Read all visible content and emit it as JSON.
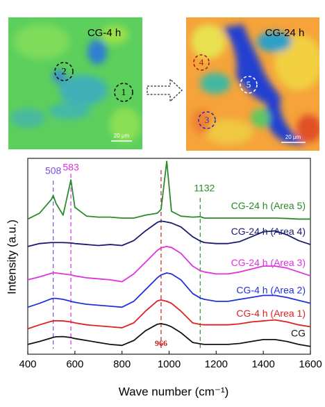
{
  "maps": {
    "left": {
      "title": "CG-4 h",
      "areas": [
        "2",
        "1"
      ],
      "scale": "20 μm"
    },
    "right": {
      "title": "CG-24 h",
      "areas": [
        "4",
        "5",
        "3"
      ],
      "scale": "20 μm"
    }
  },
  "chart_data": {
    "type": "line",
    "xlabel": "Wave number (cm⁻¹)",
    "ylabel": "Intensity (a.u.)",
    "x": [
      400,
      450,
      500,
      508,
      520,
      550,
      583,
      600,
      650,
      700,
      750,
      800,
      850,
      900,
      950,
      966,
      990,
      1010,
      1050,
      1100,
      1132,
      1150,
      1200,
      1250,
      1300,
      1350,
      1400,
      1450,
      1500,
      1550,
      1600
    ],
    "xlim": [
      400,
      1600
    ],
    "xticks": [
      400,
      600,
      800,
      1000,
      1200,
      1400,
      1600
    ],
    "ylim": [
      0,
      100
    ],
    "series": [
      {
        "name": "CG",
        "color": "#111111",
        "values": [
          5,
          6.5,
          8.3,
          8.6,
          8.9,
          9,
          8.5,
          8,
          7,
          6,
          5,
          4.5,
          7,
          12,
          15.3,
          15.6,
          15,
          14,
          11,
          6,
          5.3,
          5,
          5,
          5,
          5.5,
          6.5,
          7.5,
          7.5,
          6.5,
          5,
          4
        ]
      },
      {
        "name": "CG-4 h (Area 1)",
        "color": "#e02020",
        "values": [
          13,
          15,
          16.8,
          17,
          17.1,
          17,
          16.5,
          16,
          15,
          14.5,
          14,
          13.5,
          16,
          22,
          27.2,
          27.7,
          27,
          26,
          22,
          16,
          15.2,
          15,
          15,
          15,
          15.5,
          16.5,
          17,
          17.5,
          16.5,
          15,
          14
        ]
      },
      {
        "name": "CG-4 h (Area 2)",
        "color": "#2030e0",
        "values": [
          24,
          26,
          28.3,
          28.5,
          28.5,
          28,
          27,
          26.5,
          25.5,
          25,
          24.5,
          24,
          27,
          33,
          39,
          40.5,
          41.5,
          41,
          38,
          31,
          28.7,
          28,
          27,
          27,
          28,
          29,
          30,
          30,
          29,
          27.5,
          26
        ]
      },
      {
        "name": "CG-24 h (Area 3)",
        "color": "#e030e0",
        "values": [
          38,
          39.5,
          41.3,
          41.5,
          41.5,
          41,
          40.5,
          40,
          39,
          38.5,
          38,
          37,
          41,
          47,
          53,
          54.3,
          55,
          54.5,
          51.5,
          45,
          42.7,
          42,
          41,
          41,
          42,
          43.5,
          45,
          45,
          44,
          42,
          40
        ]
      },
      {
        "name": "CG-24 h (Area 4)",
        "color": "#1a1a6e",
        "values": [
          55,
          56.5,
          57,
          57,
          57,
          57,
          56.8,
          56.5,
          56,
          55.5,
          56,
          55.5,
          58,
          63,
          67.3,
          68,
          67.5,
          67,
          65,
          60,
          57.8,
          57,
          56.5,
          56.5,
          57.5,
          60,
          62.5,
          63,
          61,
          58,
          56
        ]
      },
      {
        "name": "CG-24 h (Area 5)",
        "color": "#2a8a2a",
        "values": [
          69,
          72,
          79,
          81,
          77,
          71,
          89,
          75,
          70.5,
          70,
          70,
          69.5,
          69.5,
          71,
          72,
          74,
          98.5,
          73,
          70.5,
          70,
          70.2,
          69.5,
          69.5,
          69.5,
          69.5,
          69.5,
          69.5,
          69.5,
          69.3,
          69,
          69
        ]
      }
    ],
    "reference_lines": [
      {
        "x": 508,
        "color": "#7a4ee0"
      },
      {
        "x": 583,
        "color": "#e030e0"
      },
      {
        "x": 966,
        "color": "#c02020"
      },
      {
        "x": 1132,
        "color": "#2a8a2a"
      }
    ]
  }
}
